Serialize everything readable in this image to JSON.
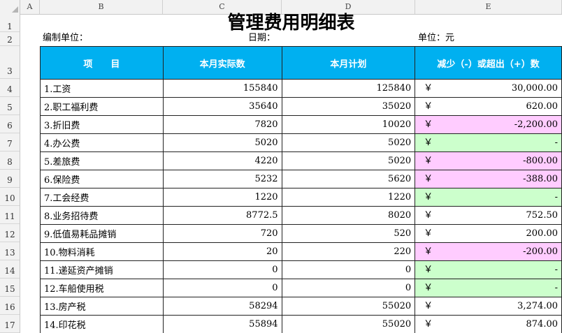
{
  "sheet": {
    "column_headers": [
      "A",
      "B",
      "C",
      "D",
      "E"
    ],
    "row_numbers": [
      "1",
      "2",
      "3",
      "4",
      "5",
      "6",
      "7",
      "8",
      "9",
      "10",
      "11",
      "12",
      "13",
      "14",
      "15",
      "16",
      "17"
    ],
    "title": "管理费用明细表",
    "meta": {
      "unit_label": "编制单位：",
      "date_label": "日期：",
      "currency_label": "单位：元"
    },
    "table": {
      "headers": [
        "项　　目",
        "本月实际数",
        "本月计划",
        "减少（-）或超出（+）数"
      ],
      "currency_symbol": "￥",
      "rows": [
        {
          "item": "1.工资",
          "actual": "155840",
          "plan": "125840",
          "diff": "30,000.00",
          "status": "pos"
        },
        {
          "item": "2.职工福利费",
          "actual": "35640",
          "plan": "35020",
          "diff": "620.00",
          "status": "pos"
        },
        {
          "item": "3.折旧费",
          "actual": "7820",
          "plan": "10020",
          "diff": "-2,200.00",
          "status": "neg"
        },
        {
          "item": "4.办公费",
          "actual": "5020",
          "plan": "5020",
          "diff": "-",
          "status": "zero"
        },
        {
          "item": "5.差旅费",
          "actual": "4220",
          "plan": "5020",
          "diff": "-800.00",
          "status": "neg"
        },
        {
          "item": "6.保险费",
          "actual": "5232",
          "plan": "5620",
          "diff": "-388.00",
          "status": "neg"
        },
        {
          "item": "7.工会经费",
          "actual": "1220",
          "plan": "1220",
          "diff": "-",
          "status": "zero"
        },
        {
          "item": "8.业务招待费",
          "actual": "8772.5",
          "plan": "8020",
          "diff": "752.50",
          "status": "pos"
        },
        {
          "item": "9.低值易耗品摊销",
          "actual": "720",
          "plan": "520",
          "diff": "200.00",
          "status": "pos"
        },
        {
          "item": "10.物料消耗",
          "actual": "20",
          "plan": "220",
          "diff": "-200.00",
          "status": "neg"
        },
        {
          "item": "11.递延资产摊销",
          "actual": "0",
          "plan": "0",
          "diff": "-",
          "status": "zero"
        },
        {
          "item": "12.车船使用税",
          "actual": "0",
          "plan": "0",
          "diff": "-",
          "status": "zero"
        },
        {
          "item": "13.房产税",
          "actual": "58294",
          "plan": "55020",
          "diff": "3,274.00",
          "status": "pos"
        },
        {
          "item": "14.印花税",
          "actual": "55894",
          "plan": "55020",
          "diff": "874.00",
          "status": "pos"
        }
      ]
    },
    "colors": {
      "header_fill": "#00b0f0",
      "negative_fill": "#ffccff",
      "zero_fill": "#ccffcc"
    }
  }
}
